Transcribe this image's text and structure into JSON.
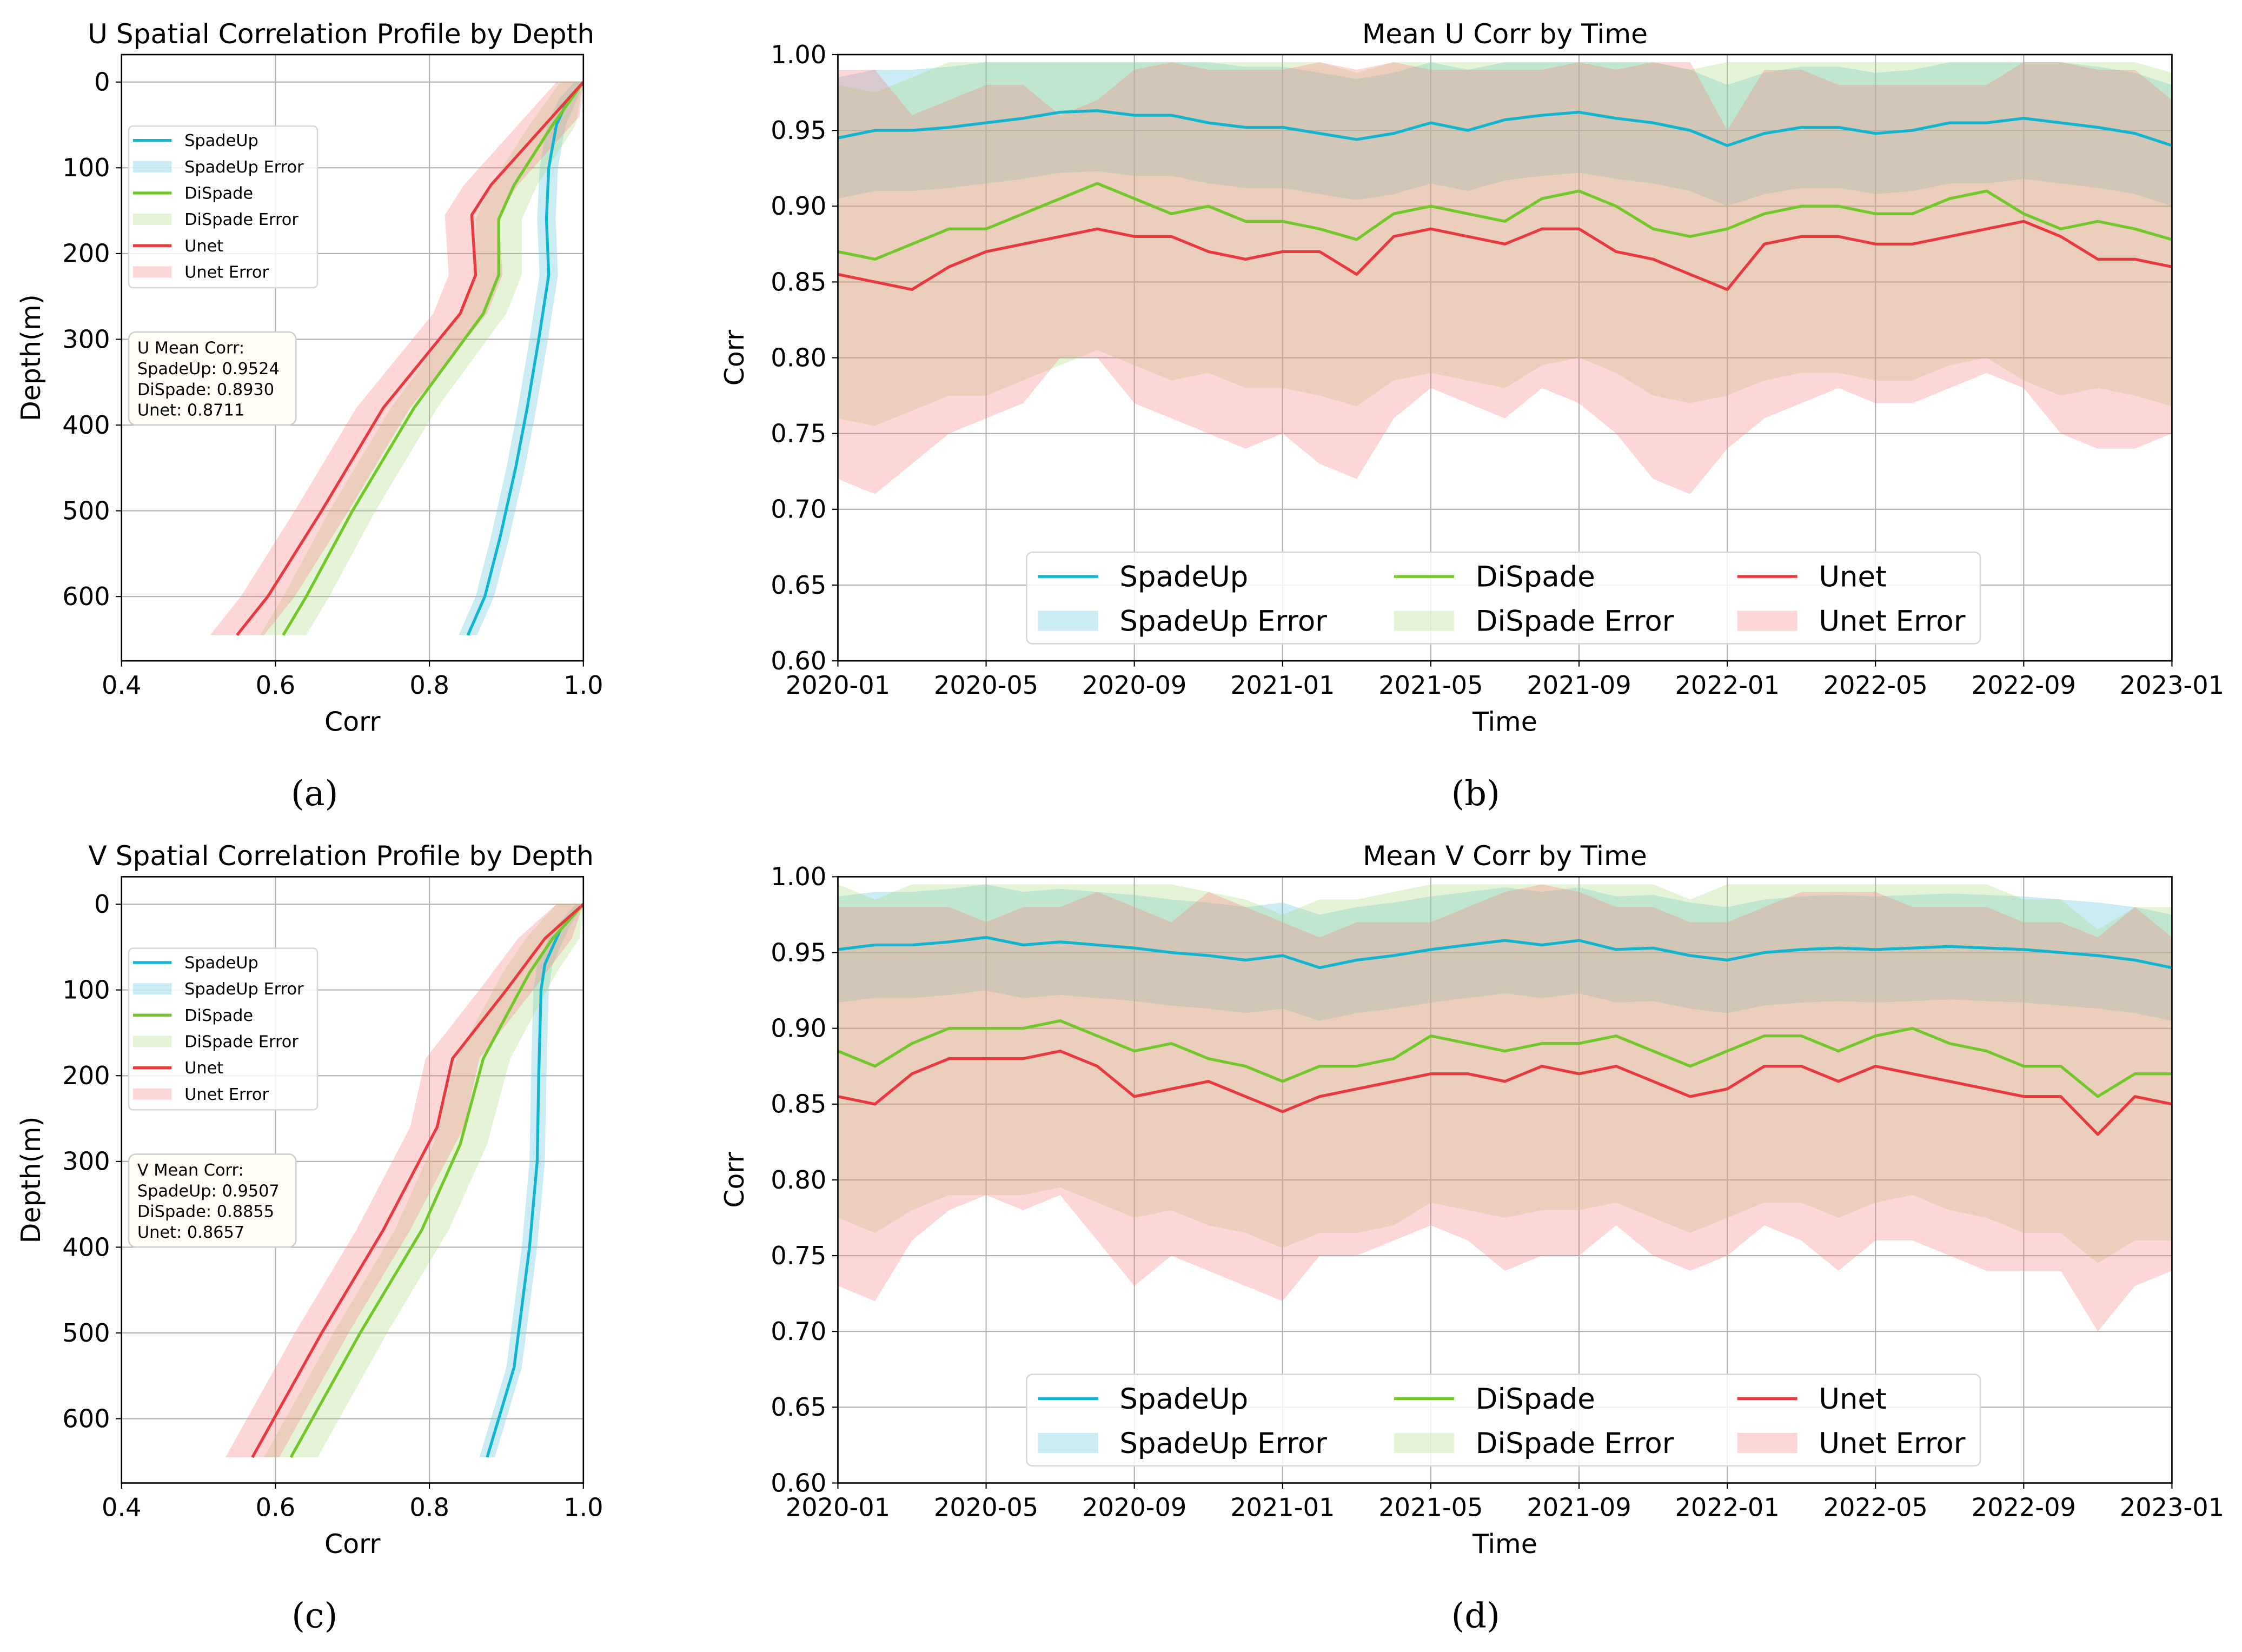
{
  "colors": {
    "SpadeUp": "#12b5cf",
    "DiSpade": "#72c72a",
    "Unet": "#e8393f",
    "SpadeUpFill": "rgba(120,205,225,0.38)",
    "DiSpadeFill": "rgba(160,215,110,0.28)",
    "UnetFill": "rgba(248,130,130,0.32)"
  },
  "panel_labels": [
    "(a)",
    "(b)",
    "(c)",
    "(d)"
  ],
  "chart_data": [
    {
      "type": "line",
      "id": "a",
      "title": "U Spatial Correlation Profile by Depth",
      "xlabel": "Corr",
      "ylabel": "Depth(m)",
      "xlim": [
        0.4,
        1.0
      ],
      "ylim": [
        675,
        -32
      ],
      "grid": true,
      "xticks": [
        "0.4",
        "0.6",
        "0.8",
        "1.0"
      ],
      "yticks": [
        "0",
        "100",
        "200",
        "300",
        "400",
        "500",
        "600"
      ],
      "legend": [
        "SpadeUp",
        "SpadeUp Error",
        "DiSpade",
        "DiSpade Error",
        "Unet",
        "Unet Error"
      ],
      "legend_position": "upper-left",
      "annotation": [
        "U Mean Corr:",
        "SpadeUp: 0.9524",
        "DiSpade: 0.8930",
        "Unet: 0.8711"
      ],
      "series": [
        {
          "name": "SpadeUp",
          "points": [
            [
              1.0,
              0
            ],
            [
              0.98,
              20
            ],
            [
              0.965,
              50
            ],
            [
              0.955,
              100
            ],
            [
              0.952,
              160
            ],
            [
              0.955,
              225
            ],
            [
              0.942,
              300
            ],
            [
              0.927,
              380
            ],
            [
              0.912,
              450
            ],
            [
              0.892,
              530
            ],
            [
              0.872,
              600
            ],
            [
              0.85,
              645
            ]
          ],
          "err": 0.012
        },
        {
          "name": "DiSpade",
          "points": [
            [
              1.0,
              0
            ],
            [
              0.96,
              50
            ],
            [
              0.91,
              120
            ],
            [
              0.89,
              160
            ],
            [
              0.89,
              225
            ],
            [
              0.87,
              270
            ],
            [
              0.78,
              380
            ],
            [
              0.7,
              500
            ],
            [
              0.64,
              600
            ],
            [
              0.61,
              645
            ]
          ],
          "err": 0.03
        },
        {
          "name": "Unet",
          "points": [
            [
              1.0,
              0
            ],
            [
              0.96,
              40
            ],
            [
              0.92,
              80
            ],
            [
              0.88,
              120
            ],
            [
              0.855,
              155
            ],
            [
              0.86,
              225
            ],
            [
              0.84,
              270
            ],
            [
              0.74,
              380
            ],
            [
              0.66,
              500
            ],
            [
              0.59,
              600
            ],
            [
              0.55,
              645
            ]
          ],
          "err": 0.035
        }
      ]
    },
    {
      "type": "line",
      "id": "b",
      "title": "Mean U Corr by Time",
      "xlabel": "Time",
      "ylabel": "Corr",
      "xlim": [
        0,
        36
      ],
      "ylim": [
        0.6,
        1.0
      ],
      "grid": true,
      "xticks": [
        "2020-01",
        "2020-05",
        "2020-09",
        "2021-01",
        "2021-05",
        "2021-09",
        "2022-01",
        "2022-05",
        "2022-09",
        "2023-01"
      ],
      "yticks": [
        "0.60",
        "0.65",
        "0.70",
        "0.75",
        "0.80",
        "0.85",
        "0.90",
        "0.95",
        "1.00"
      ],
      "legend": [
        "SpadeUp",
        "SpadeUp Error",
        "DiSpade",
        "DiSpade Error",
        "Unet",
        "Unet Error"
      ],
      "legend_position": "lower-center",
      "x_unit": "months since 2020-01",
      "series": [
        {
          "name": "SpadeUp",
          "values": [
            0.945,
            0.95,
            0.95,
            0.952,
            0.955,
            0.958,
            0.962,
            0.963,
            0.96,
            0.96,
            0.955,
            0.952,
            0.952,
            0.948,
            0.944,
            0.948,
            0.955,
            0.95,
            0.957,
            0.96,
            0.962,
            0.958,
            0.955,
            0.95,
            0.94,
            0.948,
            0.952,
            0.952,
            0.948,
            0.95,
            0.955,
            0.955,
            0.958,
            0.955,
            0.952,
            0.948,
            0.94
          ],
          "err": 0.04
        },
        {
          "name": "DiSpade",
          "values": [
            0.87,
            0.865,
            0.875,
            0.885,
            0.885,
            0.895,
            0.905,
            0.915,
            0.905,
            0.895,
            0.9,
            0.89,
            0.89,
            0.885,
            0.878,
            0.895,
            0.9,
            0.895,
            0.89,
            0.905,
            0.91,
            0.9,
            0.885,
            0.88,
            0.885,
            0.895,
            0.9,
            0.9,
            0.895,
            0.895,
            0.905,
            0.91,
            0.895,
            0.885,
            0.89,
            0.885,
            0.878
          ],
          "err": 0.11
        },
        {
          "name": "Unet",
          "values": [
            0.855,
            0.85,
            0.845,
            0.86,
            0.87,
            0.875,
            0.88,
            0.885,
            0.88,
            0.88,
            0.87,
            0.865,
            0.87,
            0.87,
            0.855,
            0.88,
            0.885,
            0.88,
            0.875,
            0.885,
            0.885,
            0.87,
            0.865,
            0.855,
            0.845,
            0.875,
            0.88,
            0.88,
            0.875,
            0.875,
            0.88,
            0.885,
            0.89,
            0.88,
            0.865,
            0.865,
            0.86
          ],
          "lower": [
            0.72,
            0.71,
            0.73,
            0.75,
            0.76,
            0.77,
            0.8,
            0.8,
            0.77,
            0.76,
            0.75,
            0.74,
            0.75,
            0.73,
            0.72,
            0.76,
            0.78,
            0.77,
            0.76,
            0.78,
            0.77,
            0.75,
            0.72,
            0.71,
            0.74,
            0.76,
            0.77,
            0.78,
            0.77,
            0.77,
            0.78,
            0.79,
            0.78,
            0.75,
            0.74,
            0.74,
            0.75
          ]
        }
      ]
    },
    {
      "type": "line",
      "id": "c",
      "title": "V Spatial Correlation Profile by Depth",
      "xlabel": "Corr",
      "ylabel": "Depth(m)",
      "xlim": [
        0.4,
        1.0
      ],
      "ylim": [
        675,
        -32
      ],
      "grid": true,
      "xticks": [
        "0.4",
        "0.6",
        "0.8",
        "1.0"
      ],
      "yticks": [
        "0",
        "100",
        "200",
        "300",
        "400",
        "500",
        "600"
      ],
      "legend": [
        "SpadeUp",
        "SpadeUp Error",
        "DiSpade",
        "DiSpade Error",
        "Unet",
        "Unet Error"
      ],
      "legend_position": "upper-left",
      "annotation": [
        "V Mean Corr:",
        "SpadeUp: 0.9507",
        "DiSpade: 0.8855",
        "Unet: 0.8657"
      ],
      "series": [
        {
          "name": "SpadeUp",
          "points": [
            [
              1.0,
              0
            ],
            [
              0.97,
              30
            ],
            [
              0.95,
              70
            ],
            [
              0.945,
              100
            ],
            [
              0.942,
              200
            ],
            [
              0.94,
              300
            ],
            [
              0.93,
              400
            ],
            [
              0.91,
              540
            ],
            [
              0.875,
              645
            ]
          ],
          "err": 0.01
        },
        {
          "name": "DiSpade",
          "points": [
            [
              1.0,
              0
            ],
            [
              0.96,
              40
            ],
            [
              0.93,
              80
            ],
            [
              0.87,
              180
            ],
            [
              0.84,
              280
            ],
            [
              0.79,
              380
            ],
            [
              0.71,
              500
            ],
            [
              0.62,
              645
            ]
          ],
          "err": 0.035
        },
        {
          "name": "Unet",
          "points": [
            [
              1.0,
              0
            ],
            [
              0.95,
              40
            ],
            [
              0.9,
              100
            ],
            [
              0.83,
              180
            ],
            [
              0.81,
              260
            ],
            [
              0.74,
              380
            ],
            [
              0.66,
              500
            ],
            [
              0.57,
              645
            ]
          ],
          "err": 0.035
        }
      ]
    },
    {
      "type": "line",
      "id": "d",
      "title": "Mean V Corr by Time",
      "xlabel": "Time",
      "ylabel": "Corr",
      "xlim": [
        0,
        36
      ],
      "ylim": [
        0.6,
        1.0
      ],
      "grid": true,
      "xticks": [
        "2020-01",
        "2020-05",
        "2020-09",
        "2021-01",
        "2021-05",
        "2021-09",
        "2022-01",
        "2022-05",
        "2022-09",
        "2023-01"
      ],
      "yticks": [
        "0.60",
        "0.65",
        "0.70",
        "0.75",
        "0.80",
        "0.85",
        "0.90",
        "0.95",
        "1.00"
      ],
      "legend": [
        "SpadeUp",
        "SpadeUp Error",
        "DiSpade",
        "DiSpade Error",
        "Unet",
        "Unet Error"
      ],
      "legend_position": "lower-center",
      "x_unit": "months since 2020-01",
      "series": [
        {
          "name": "SpadeUp",
          "values": [
            0.952,
            0.955,
            0.955,
            0.957,
            0.96,
            0.955,
            0.957,
            0.955,
            0.953,
            0.95,
            0.948,
            0.945,
            0.948,
            0.94,
            0.945,
            0.948,
            0.952,
            0.955,
            0.958,
            0.955,
            0.958,
            0.952,
            0.953,
            0.948,
            0.945,
            0.95,
            0.952,
            0.953,
            0.952,
            0.953,
            0.954,
            0.953,
            0.952,
            0.95,
            0.948,
            0.945,
            0.94
          ],
          "err": 0.035
        },
        {
          "name": "DiSpade",
          "values": [
            0.885,
            0.875,
            0.89,
            0.9,
            0.9,
            0.9,
            0.905,
            0.895,
            0.885,
            0.89,
            0.88,
            0.875,
            0.865,
            0.875,
            0.875,
            0.88,
            0.895,
            0.89,
            0.885,
            0.89,
            0.89,
            0.895,
            0.885,
            0.875,
            0.885,
            0.895,
            0.895,
            0.885,
            0.895,
            0.9,
            0.89,
            0.885,
            0.875,
            0.875,
            0.855,
            0.87,
            0.87
          ],
          "err": 0.11
        },
        {
          "name": "Unet",
          "values": [
            0.855,
            0.85,
            0.87,
            0.88,
            0.88,
            0.88,
            0.885,
            0.875,
            0.855,
            0.86,
            0.865,
            0.855,
            0.845,
            0.855,
            0.86,
            0.865,
            0.87,
            0.87,
            0.865,
            0.875,
            0.87,
            0.875,
            0.865,
            0.855,
            0.86,
            0.875,
            0.875,
            0.865,
            0.875,
            0.87,
            0.865,
            0.86,
            0.855,
            0.855,
            0.83,
            0.855,
            0.85
          ],
          "lower": [
            0.73,
            0.72,
            0.76,
            0.78,
            0.79,
            0.78,
            0.79,
            0.76,
            0.73,
            0.75,
            0.74,
            0.73,
            0.72,
            0.75,
            0.75,
            0.76,
            0.77,
            0.76,
            0.74,
            0.75,
            0.75,
            0.77,
            0.75,
            0.74,
            0.75,
            0.77,
            0.76,
            0.74,
            0.76,
            0.76,
            0.75,
            0.74,
            0.74,
            0.74,
            0.7,
            0.73,
            0.74
          ]
        }
      ]
    }
  ]
}
